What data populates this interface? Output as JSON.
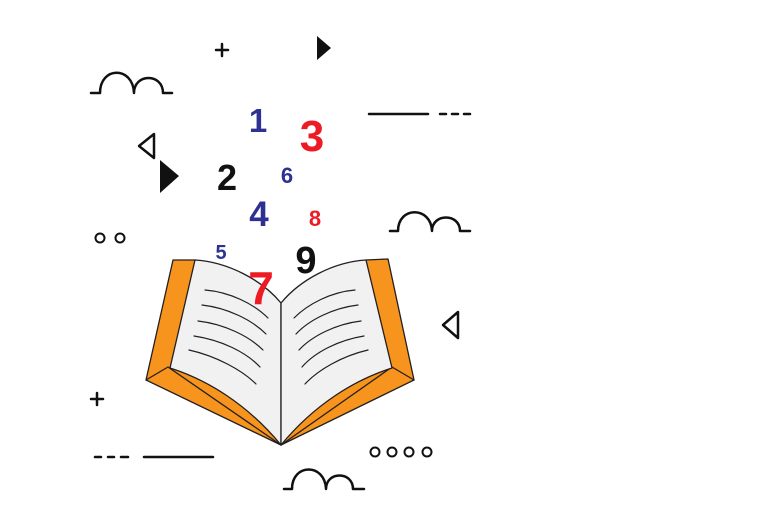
{
  "colors": {
    "blue": "#2e3192",
    "red": "#ed1c24",
    "black": "#111111",
    "orange": "#f7941d",
    "page": "#f1f1f1",
    "outline": "#231f20"
  },
  "digits": [
    {
      "text": "1",
      "color": "blue"
    },
    {
      "text": "3",
      "color": "red"
    },
    {
      "text": "2",
      "color": "black"
    },
    {
      "text": "6",
      "color": "blue"
    },
    {
      "text": "4",
      "color": "blue"
    },
    {
      "text": "8",
      "color": "red"
    },
    {
      "text": "5",
      "color": "blue"
    },
    {
      "text": "9",
      "color": "black"
    },
    {
      "text": "7",
      "color": "red"
    }
  ],
  "icons": {
    "book": "open-book-icon",
    "plus": "plus-icon",
    "triangle": "play-triangle-icon",
    "triangle_outline": "triangle-outline-icon",
    "wave": "wave-line-icon",
    "dash": "dash-line-icon",
    "dots": "circle-dots-icon"
  }
}
